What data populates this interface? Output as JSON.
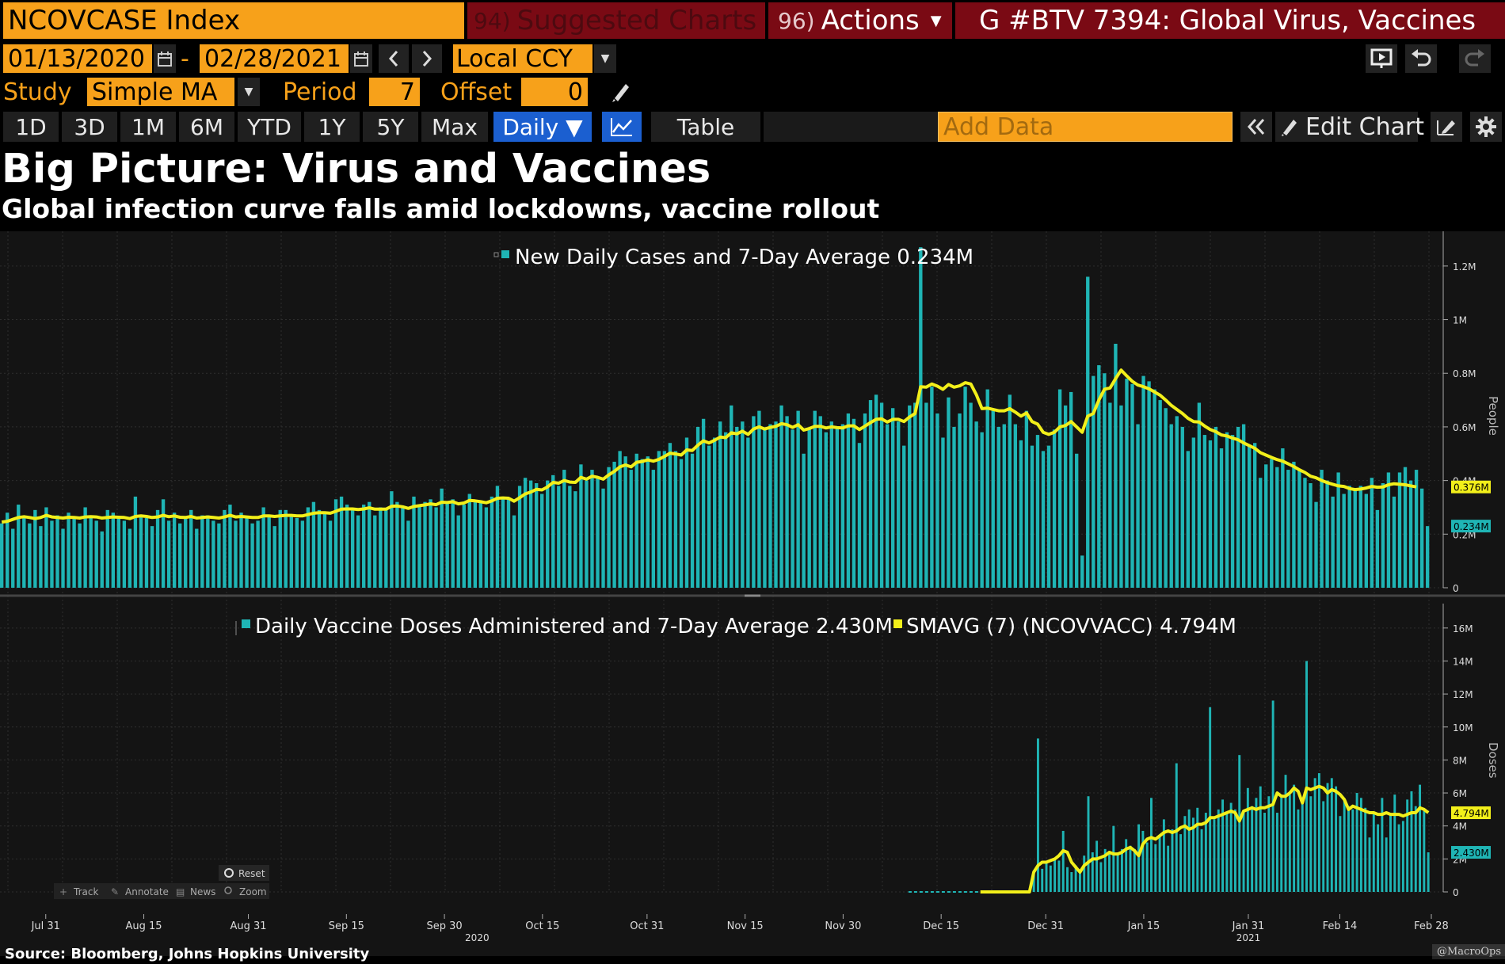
{
  "header": {
    "security": "NCOVCASE Index",
    "suggested_num": "94)",
    "suggested_label": "Suggested Charts",
    "actions_num": "96)",
    "actions_label": "Actions",
    "actions_caret": "▼",
    "title": "G #BTV 7394: Global Virus, Vaccines"
  },
  "range": {
    "start": "01/13/2020",
    "end": "02/28/2021",
    "dash": "-",
    "currency": "Local CCY"
  },
  "study": {
    "label": "Study",
    "value": "Simple MA",
    "period_label": "Period",
    "period_value": "7",
    "offset_label": "Offset",
    "offset_value": "0"
  },
  "toolbar": {
    "periods": [
      "1D",
      "3D",
      "1M",
      "6M",
      "YTD",
      "1Y",
      "5Y",
      "Max"
    ],
    "frequency": "Daily ▼",
    "table": "Table",
    "add_data_placeholder": "Add Data",
    "edit_chart": "Edit Chart"
  },
  "headline": {
    "title": "Big Picture: Virus and Vaccines",
    "subtitle": "Global infection curve falls amid lockdowns, vaccine rollout"
  },
  "colors": {
    "bar": "#1fb5b5",
    "avg": "#f2ef1a",
    "orange": "#f7a11a"
  },
  "chart_data": [
    {
      "type": "bar",
      "legend": "New Daily Cases and 7-Day Average",
      "legend_value": "0.234M",
      "ylabel": "People",
      "ylim": [
        0,
        1300000
      ],
      "yticks": [
        0,
        200000,
        400000,
        600000,
        800000,
        1000000,
        1200000
      ],
      "ytick_labels": [
        "0",
        "0.2M",
        "0.4M",
        "0.6M",
        "0.8M",
        "1M",
        "1.2M"
      ],
      "last_labels": [
        "0.376M",
        "0.234M"
      ],
      "x_start": "2020-07-24",
      "x_end": "2021-02-28",
      "bar_values": [
        0.24,
        0.28,
        0.22,
        0.31,
        0.26,
        0.24,
        0.29,
        0.23,
        0.3,
        0.25,
        0.27,
        0.22,
        0.28,
        0.26,
        0.24,
        0.3,
        0.27,
        0.25,
        0.21,
        0.29,
        0.28,
        0.26,
        0.25,
        0.22,
        0.34,
        0.27,
        0.26,
        0.23,
        0.29,
        0.33,
        0.25,
        0.28,
        0.24,
        0.26,
        0.29,
        0.22,
        0.27,
        0.27,
        0.25,
        0.24,
        0.29,
        0.31,
        0.25,
        0.28,
        0.26,
        0.24,
        0.25,
        0.3,
        0.27,
        0.23,
        0.29,
        0.29,
        0.27,
        0.26,
        0.25,
        0.3,
        0.32,
        0.29,
        0.28,
        0.25,
        0.33,
        0.34,
        0.31,
        0.29,
        0.27,
        0.31,
        0.32,
        0.27,
        0.3,
        0.29,
        0.36,
        0.32,
        0.3,
        0.25,
        0.34,
        0.31,
        0.32,
        0.33,
        0.3,
        0.37,
        0.32,
        0.33,
        0.27,
        0.31,
        0.35,
        0.32,
        0.32,
        0.3,
        0.34,
        0.38,
        0.34,
        0.33,
        0.27,
        0.38,
        0.41,
        0.4,
        0.39,
        0.35,
        0.4,
        0.42,
        0.38,
        0.44,
        0.38,
        0.36,
        0.46,
        0.4,
        0.44,
        0.41,
        0.37,
        0.45,
        0.47,
        0.51,
        0.49,
        0.44,
        0.5,
        0.48,
        0.49,
        0.44,
        0.51,
        0.51,
        0.54,
        0.51,
        0.48,
        0.56,
        0.5,
        0.6,
        0.63,
        0.53,
        0.56,
        0.62,
        0.58,
        0.68,
        0.6,
        0.62,
        0.56,
        0.64,
        0.66,
        0.59,
        0.61,
        0.62,
        0.68,
        0.64,
        0.59,
        0.66,
        0.5,
        0.59,
        0.66,
        0.64,
        0.58,
        0.62,
        0.6,
        0.61,
        0.65,
        0.63,
        0.54,
        0.65,
        0.7,
        0.72,
        0.69,
        0.61,
        0.67,
        0.62,
        0.53,
        0.68,
        0.69,
        1.27,
        0.69,
        0.75,
        0.65,
        0.56,
        0.71,
        0.6,
        0.65,
        0.75,
        0.69,
        0.62,
        0.58,
        0.74,
        0.66,
        0.6,
        0.61,
        0.72,
        0.61,
        0.55,
        0.66,
        0.53,
        0.57,
        0.51,
        0.53,
        0.59,
        0.74,
        0.68,
        0.73,
        0.5,
        0.12,
        1.16,
        0.79,
        0.83,
        0.8,
        0.69,
        0.91,
        0.68,
        0.78,
        0.76,
        0.61,
        0.79,
        0.77,
        0.74,
        0.7,
        0.67,
        0.61,
        0.64,
        0.6,
        0.51,
        0.56,
        0.69,
        0.57,
        0.55,
        0.6,
        0.52,
        0.58,
        0.57,
        0.6,
        0.61,
        0.53,
        0.54,
        0.41,
        0.46,
        0.48,
        0.45,
        0.52,
        0.44,
        0.47,
        0.44,
        0.41,
        0.39,
        0.32,
        0.44,
        0.4,
        0.34,
        0.43,
        0.35,
        0.38,
        0.37,
        0.38,
        0.35,
        0.41,
        0.29,
        0.39,
        0.43,
        0.34,
        0.43,
        0.45,
        0.4,
        0.44,
        0.37,
        0.23
      ],
      "avg_values": [
        0.245,
        0.248,
        0.255,
        0.262,
        0.265,
        0.262,
        0.258,
        0.262,
        0.27,
        0.264,
        0.262,
        0.26,
        0.263,
        0.262,
        0.26,
        0.264,
        0.265,
        0.264,
        0.26,
        0.262,
        0.264,
        0.263,
        0.262,
        0.258,
        0.266,
        0.268,
        0.266,
        0.262,
        0.264,
        0.27,
        0.265,
        0.268,
        0.263,
        0.262,
        0.266,
        0.26,
        0.262,
        0.264,
        0.262,
        0.26,
        0.264,
        0.27,
        0.264,
        0.266,
        0.264,
        0.262,
        0.262,
        0.268,
        0.268,
        0.266,
        0.268,
        0.27,
        0.27,
        0.268,
        0.268,
        0.273,
        0.278,
        0.28,
        0.28,
        0.278,
        0.285,
        0.293,
        0.294,
        0.294,
        0.292,
        0.294,
        0.298,
        0.293,
        0.293,
        0.293,
        0.304,
        0.305,
        0.302,
        0.296,
        0.303,
        0.306,
        0.309,
        0.313,
        0.31,
        0.319,
        0.318,
        0.321,
        0.313,
        0.316,
        0.326,
        0.324,
        0.321,
        0.317,
        0.324,
        0.334,
        0.335,
        0.334,
        0.323,
        0.336,
        0.35,
        0.357,
        0.367,
        0.365,
        0.376,
        0.393,
        0.39,
        0.4,
        0.394,
        0.393,
        0.412,
        0.405,
        0.416,
        0.412,
        0.405,
        0.421,
        0.434,
        0.451,
        0.458,
        0.451,
        0.468,
        0.471,
        0.477,
        0.472,
        0.479,
        0.49,
        0.502,
        0.499,
        0.495,
        0.514,
        0.512,
        0.532,
        0.548,
        0.54,
        0.55,
        0.562,
        0.56,
        0.578,
        0.574,
        0.584,
        0.572,
        0.592,
        0.6,
        0.592,
        0.598,
        0.602,
        0.612,
        0.608,
        0.598,
        0.608,
        0.588,
        0.594,
        0.602,
        0.602,
        0.596,
        0.6,
        0.597,
        0.596,
        0.604,
        0.604,
        0.59,
        0.603,
        0.616,
        0.628,
        0.63,
        0.618,
        0.628,
        0.628,
        0.62,
        0.637,
        0.65,
        0.75,
        0.748,
        0.76,
        0.752,
        0.74,
        0.758,
        0.748,
        0.753,
        0.765,
        0.76,
        0.72,
        0.668,
        0.67,
        0.665,
        0.66,
        0.66,
        0.668,
        0.655,
        0.64,
        0.652,
        0.62,
        0.61,
        0.58,
        0.572,
        0.58,
        0.6,
        0.605,
        0.62,
        0.6,
        0.58,
        0.64,
        0.65,
        0.7,
        0.74,
        0.745,
        0.78,
        0.812,
        0.79,
        0.77,
        0.756,
        0.75,
        0.742,
        0.73,
        0.718,
        0.7,
        0.68,
        0.665,
        0.65,
        0.632,
        0.62,
        0.618,
        0.603,
        0.59,
        0.582,
        0.57,
        0.566,
        0.558,
        0.552,
        0.54,
        0.53,
        0.52,
        0.504,
        0.495,
        0.486,
        0.478,
        0.472,
        0.462,
        0.452,
        0.44,
        0.43,
        0.416,
        0.41,
        0.4,
        0.392,
        0.386,
        0.38,
        0.378,
        0.37,
        0.366,
        0.368,
        0.372,
        0.378,
        0.375,
        0.376,
        0.384,
        0.388,
        0.386,
        0.384,
        0.38,
        0.376
      ]
    },
    {
      "type": "bar",
      "legend": "Daily Vaccine Doses Administered and 7-Day Average",
      "legend_value": "2.430M",
      "legend2": "SMAVG (7) (NCOVVACC)",
      "legend2_value": "4.794M",
      "ylabel": "Doses",
      "ylim": [
        0,
        17000000
      ],
      "yticks": [
        0,
        2000000,
        4000000,
        6000000,
        8000000,
        10000000,
        12000000,
        14000000,
        16000000
      ],
      "ytick_labels": [
        "0",
        "2M",
        "4M",
        "6M",
        "8M",
        "10M",
        "12M",
        "14M",
        "16M"
      ],
      "last_labels": [
        "4.794M",
        "2.430M"
      ],
      "bar_values": [
        1.2,
        9.3,
        1.4,
        1.8,
        1.6,
        2.0,
        1.9,
        3.7,
        1.5,
        1.2,
        1.6,
        1.3,
        2.2,
        5.8,
        2.4,
        3.1,
        1.8,
        2.6,
        2.3,
        4.0,
        2.4,
        2.6,
        3.2,
        2.8,
        2.6,
        4.1,
        3.7,
        3.0,
        5.7,
        2.9,
        3.4,
        4.4,
        2.8,
        3.8,
        7.8,
        3.5,
        4.6,
        5.0,
        4.5,
        5.1,
        3.8,
        4.8,
        11.2,
        4.4,
        5.0,
        5.6,
        4.8,
        5.4,
        5.0,
        8.3,
        4.9,
        6.3,
        5.2,
        5.7,
        6.4,
        4.8,
        5.8,
        11.6,
        4.8,
        5.9,
        7.1,
        5.9,
        6.5,
        5.0,
        5.6,
        14.0,
        5.8,
        6.9,
        7.2,
        5.5,
        6.6,
        6.9,
        6.4,
        4.6,
        5.6,
        5.2,
        5.0,
        6.0,
        5.7,
        5.1,
        3.3,
        4.8,
        4.1,
        5.7,
        3.3,
        4.7,
        5.9,
        4.1,
        4.3,
        5.6,
        6.1,
        5.2,
        6.5,
        4.9,
        2.4
      ],
      "avg_values": [
        1.2,
        1.6,
        1.8,
        1.8,
        1.9,
        2.0,
        2.2,
        2.5,
        2.4,
        1.8,
        1.5,
        1.2,
        1.6,
        1.8,
        2.0,
        2.0,
        2.1,
        2.2,
        2.4,
        2.3,
        2.3,
        2.4,
        2.6,
        2.7,
        2.5,
        2.2,
        2.9,
        3.2,
        3.3,
        3.2,
        3.4,
        3.6,
        3.7,
        3.6,
        3.7,
        3.9,
        4.0,
        3.8,
        3.9,
        4.1,
        4.1,
        4.2,
        4.5,
        4.5,
        4.6,
        4.7,
        4.8,
        4.9,
        4.8,
        4.3,
        4.9,
        5.0,
        5.1,
        5.0,
        5.1,
        5.1,
        5.2,
        5.3,
        6.0,
        5.8,
        5.8,
        6.0,
        6.3,
        6.1,
        5.4,
        6.3,
        6.2,
        6.3,
        6.4,
        6.3,
        6.0,
        6.2,
        6.1,
        5.9,
        5.6,
        5.0,
        5.2,
        5.1,
        5.0,
        4.9,
        4.8,
        4.8,
        4.7,
        4.7,
        4.8,
        4.7,
        4.7,
        4.7,
        4.6,
        4.7,
        4.8,
        4.8,
        5.1,
        5.0,
        4.8
      ]
    }
  ],
  "axis": {
    "x_labels": [
      "Jul 31",
      "Aug 15",
      "Aug 31",
      "Sep 15",
      "Sep 30",
      "Oct 15",
      "Oct 31",
      "Nov 15",
      "Nov 30",
      "Dec 15",
      "Dec 31",
      "Jan 15",
      "Jan 31",
      "Feb 14",
      "Feb 28"
    ],
    "year_labels": [
      "2020",
      "2021"
    ]
  },
  "controls": {
    "reset": "Reset",
    "track": "Track",
    "annotate": "Annotate",
    "news": "News",
    "zoom": "Zoom"
  },
  "footer": {
    "source": "Source: Bloomberg, Johns Hopkins University",
    "credit": "@MacroOps"
  }
}
